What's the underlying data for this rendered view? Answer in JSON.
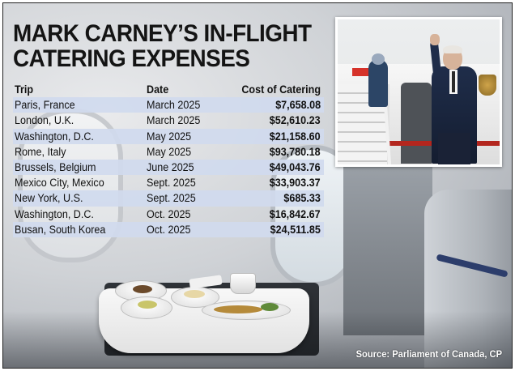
{
  "headline": {
    "line1": "MARK CARNEY’S IN-FLIGHT",
    "line2": "CATERING EXPENSES"
  },
  "table": {
    "columns": [
      "Trip",
      "Date",
      "Cost of Catering"
    ],
    "rows": [
      {
        "trip": "Paris, France",
        "date": "March 2025",
        "cost": "$7,658.08"
      },
      {
        "trip": "London, U.K.",
        "date": "March 2025",
        "cost": "$52,610.23"
      },
      {
        "trip": "Washington, D.C.",
        "date": "May 2025",
        "cost": "$21,158.60"
      },
      {
        "trip": "Rome, Italy",
        "date": "May 2025",
        "cost": "$93,780.18"
      },
      {
        "trip": "Brussels, Belgium",
        "date": "June 2025",
        "cost": "$49,043.76"
      },
      {
        "trip": "Mexico City, Mexico",
        "date": "Sept. 2025",
        "cost": "$33,903.37"
      },
      {
        "trip": "New York, U.S.",
        "date": "Sept. 2025",
        "cost": "$685.33"
      },
      {
        "trip": "Washington, D.C.",
        "date": "Oct. 2025",
        "cost": "$16,842.67"
      },
      {
        "trip": "Busan, South Korea",
        "date": "Oct. 2025",
        "cost": "$24,511.85"
      }
    ]
  },
  "source": "Source: Parliament of Canada, CP",
  "colors": {
    "headline": "#141414",
    "row_shade": "#d0daee",
    "source_text": "#ffffff"
  }
}
